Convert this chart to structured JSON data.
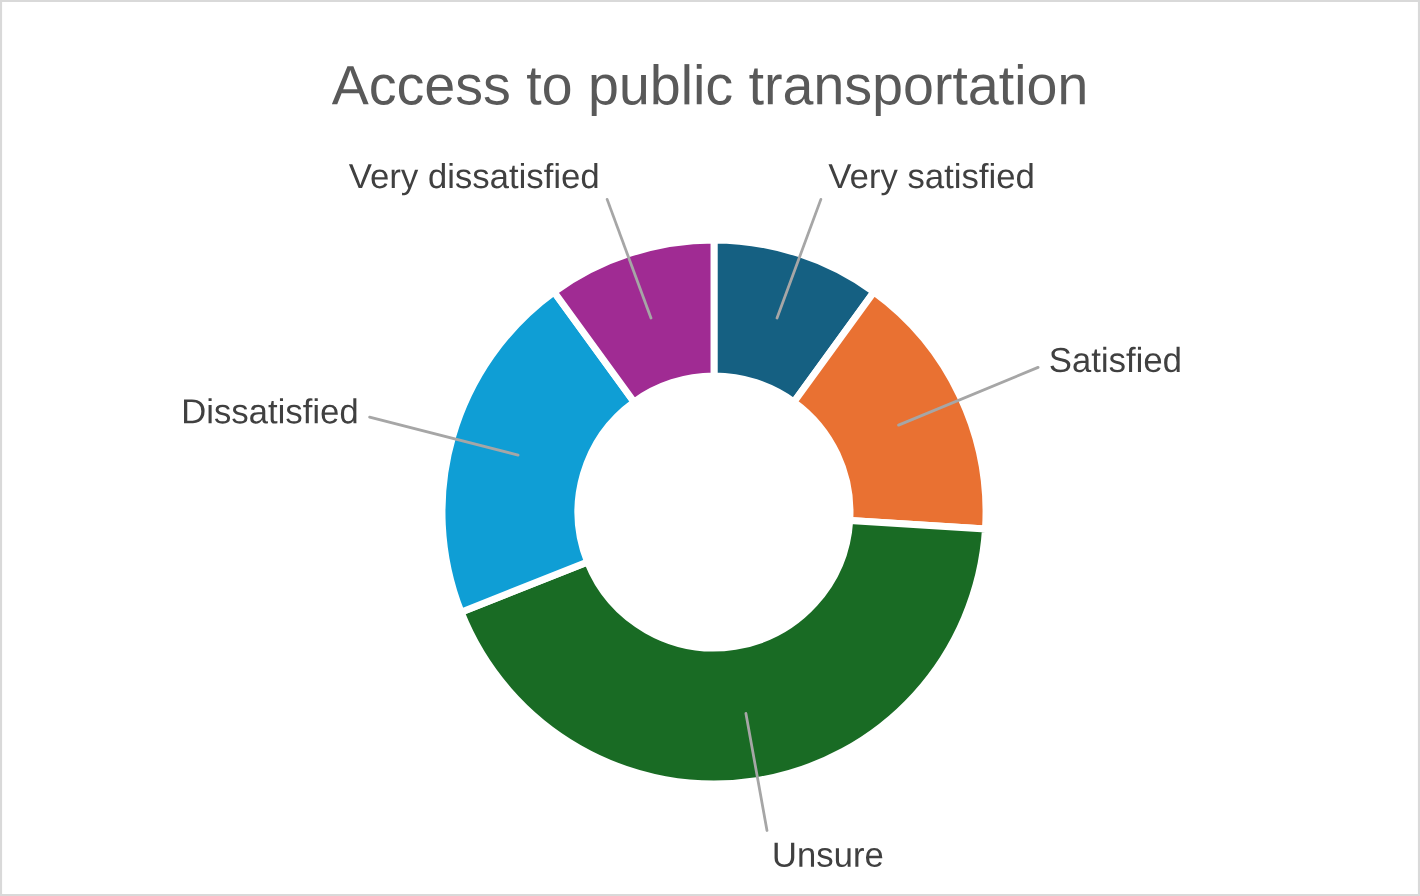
{
  "chart_data": {
    "type": "donut",
    "title": "Access to public transportation",
    "categories": [
      "Very satisfied",
      "Satisfied",
      "Unsure",
      "Dissatisfied",
      "Very dissatisfied"
    ],
    "values": [
      10,
      16,
      43,
      21,
      10
    ],
    "colors": [
      "#156082",
      "#e97132",
      "#196b24",
      "#0f9ed5",
      "#a02b93"
    ],
    "legend": false
  }
}
